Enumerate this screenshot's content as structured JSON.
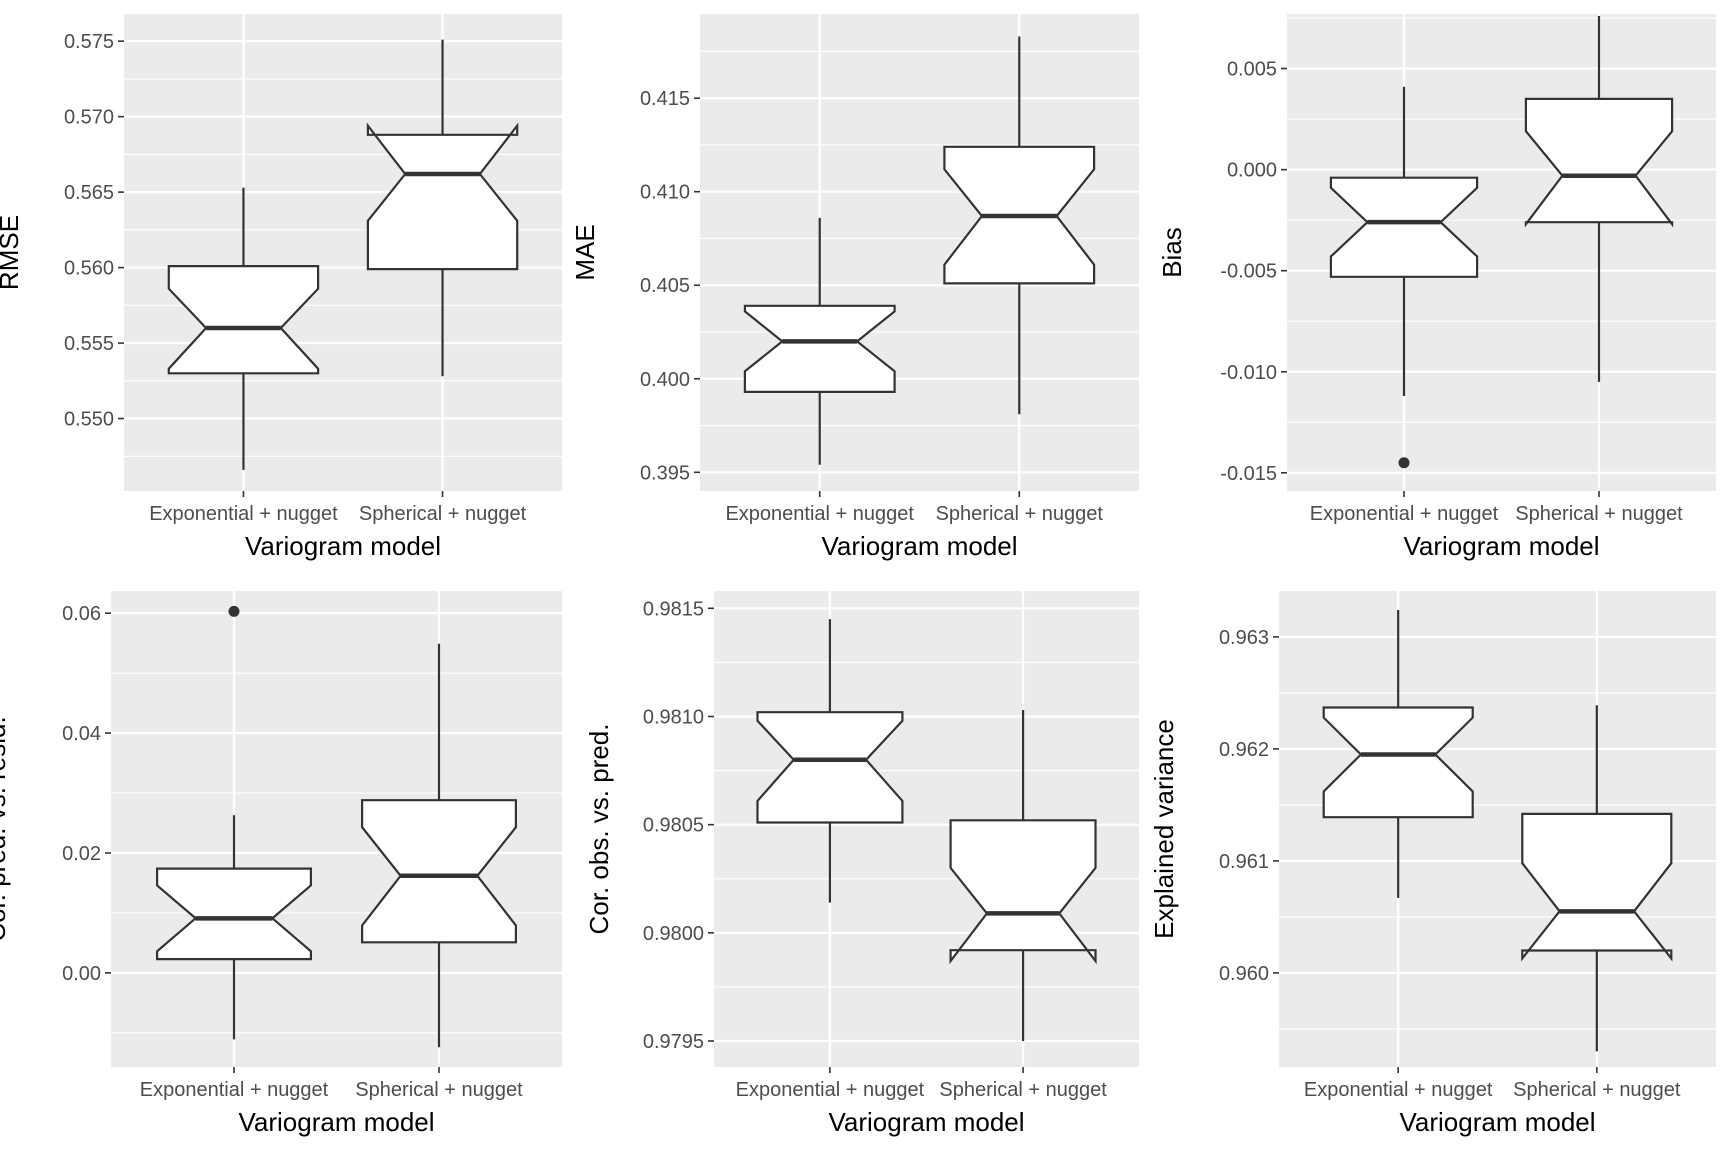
{
  "chart_data": [
    {
      "type": "boxplot",
      "notched": true,
      "xlabel": "Variogram model",
      "ylabel": "RMSE",
      "categories": [
        "Exponential + nugget",
        "Spherical + nugget"
      ],
      "ylim": [
        0.5452,
        0.5768
      ],
      "yticks": [
        0.55,
        0.555,
        0.56,
        0.565,
        0.57,
        0.575
      ],
      "ytick_labels": [
        "0.550",
        "0.555",
        "0.560",
        "0.565",
        "0.570",
        "0.575"
      ],
      "grid": true,
      "boxes": [
        {
          "whisker_low": 0.5466,
          "q1": 0.553,
          "median": 0.556,
          "q3": 0.5601,
          "whisker_high": 0.5653,
          "notch_low": 0.5533,
          "notch_high": 0.5586,
          "outliers": []
        },
        {
          "whisker_low": 0.5528,
          "q1": 0.5599,
          "median": 0.5662,
          "q3": 0.5688,
          "whisker_high": 0.5751,
          "notch_low": 0.5631,
          "notch_high": 0.5694,
          "outliers": []
        }
      ]
    },
    {
      "type": "boxplot",
      "notched": true,
      "xlabel": "Variogram model",
      "ylabel": "MAE",
      "categories": [
        "Exponential + nugget",
        "Spherical + nugget"
      ],
      "ylim": [
        0.394,
        0.4195
      ],
      "yticks": [
        0.395,
        0.4,
        0.405,
        0.41,
        0.415
      ],
      "ytick_labels": [
        "0.395",
        "0.400",
        "0.405",
        "0.410",
        "0.415"
      ],
      "grid": true,
      "boxes": [
        {
          "whisker_low": 0.3954,
          "q1": 0.3993,
          "median": 0.402,
          "q3": 0.4039,
          "whisker_high": 0.4086,
          "notch_low": 0.4004,
          "notch_high": 0.4036,
          "outliers": []
        },
        {
          "whisker_low": 0.3981,
          "q1": 0.4051,
          "median": 0.4087,
          "q3": 0.4124,
          "whisker_high": 0.4183,
          "notch_low": 0.4061,
          "notch_high": 0.4112,
          "outliers": []
        }
      ]
    },
    {
      "type": "boxplot",
      "notched": true,
      "xlabel": "Variogram model",
      "ylabel": "Bias",
      "categories": [
        "Exponential + nugget",
        "Spherical + nugget"
      ],
      "ylim": [
        -0.0159,
        0.0077
      ],
      "yticks": [
        -0.015,
        -0.01,
        -0.005,
        0.0,
        0.005
      ],
      "ytick_labels": [
        "-0.015",
        "-0.010",
        "-0.005",
        "0.000",
        "0.005"
      ],
      "grid": true,
      "boxes": [
        {
          "whisker_low": -0.0112,
          "q1": -0.0053,
          "median": -0.0026,
          "q3": -0.0004,
          "whisker_high": 0.0041,
          "notch_low": -0.0043,
          "notch_high": -0.0009,
          "outliers": [
            -0.0145
          ]
        },
        {
          "whisker_low": -0.0105,
          "q1": -0.0026,
          "median": -0.0003,
          "q3": 0.0035,
          "whisker_high": 0.0076,
          "notch_low": -0.0027,
          "notch_high": 0.0019,
          "outliers": []
        }
      ]
    },
    {
      "type": "boxplot",
      "notched": true,
      "xlabel": "Variogram model",
      "ylabel": "Cor. pred. vs. resid.",
      "categories": [
        "Exponential + nugget",
        "Spherical + nugget"
      ],
      "ylim": [
        -0.0157,
        0.0637
      ],
      "yticks": [
        0.0,
        0.02,
        0.04,
        0.06
      ],
      "ytick_labels": [
        "0.00",
        "0.02",
        "0.04",
        "0.06"
      ],
      "grid": true,
      "boxes": [
        {
          "whisker_low": -0.0111,
          "q1": 0.0023,
          "median": 0.0091,
          "q3": 0.0174,
          "whisker_high": 0.0263,
          "notch_low": 0.0036,
          "notch_high": 0.0146,
          "outliers": [
            0.0603
          ]
        },
        {
          "whisker_low": -0.0124,
          "q1": 0.0051,
          "median": 0.0162,
          "q3": 0.0288,
          "whisker_high": 0.0549,
          "notch_low": 0.0079,
          "notch_high": 0.0243,
          "outliers": []
        }
      ]
    },
    {
      "type": "boxplot",
      "notched": true,
      "xlabel": "Variogram model",
      "ylabel": "Cor. obs. vs. pred.",
      "categories": [
        "Exponential + nugget",
        "Spherical + nugget"
      ],
      "ylim": [
        0.97938,
        0.98158
      ],
      "yticks": [
        0.9795,
        0.98,
        0.9805,
        0.981,
        0.9815
      ],
      "ytick_labels": [
        "0.9795",
        "0.9800",
        "0.9805",
        "0.9810",
        "0.9815"
      ],
      "grid": true,
      "boxes": [
        {
          "whisker_low": 0.98014,
          "q1": 0.98051,
          "median": 0.9808,
          "q3": 0.98102,
          "whisker_high": 0.98145,
          "notch_low": 0.98061,
          "notch_high": 0.98098,
          "outliers": []
        },
        {
          "whisker_low": 0.9795,
          "q1": 0.97992,
          "median": 0.98009,
          "q3": 0.98052,
          "whisker_high": 0.98103,
          "notch_low": 0.97987,
          "notch_high": 0.9803,
          "outliers": []
        }
      ]
    },
    {
      "type": "boxplot",
      "notched": true,
      "xlabel": "Variogram model",
      "ylabel": "Explained variance",
      "categories": [
        "Exponential + nugget",
        "Spherical + nugget"
      ],
      "ylim": [
        0.95916,
        0.96341
      ],
      "yticks": [
        0.96,
        0.961,
        0.962,
        0.963
      ],
      "ytick_labels": [
        "0.960",
        "0.961",
        "0.962",
        "0.963"
      ],
      "grid": true,
      "boxes": [
        {
          "whisker_low": 0.96067,
          "q1": 0.96139,
          "median": 0.96195,
          "q3": 0.96237,
          "whisker_high": 0.96324,
          "notch_low": 0.96162,
          "notch_high": 0.96228,
          "outliers": []
        },
        {
          "whisker_low": 0.9593,
          "q1": 0.9602,
          "median": 0.96055,
          "q3": 0.96142,
          "whisker_high": 0.96239,
          "notch_low": 0.96013,
          "notch_high": 0.96098,
          "outliers": []
        }
      ]
    }
  ]
}
